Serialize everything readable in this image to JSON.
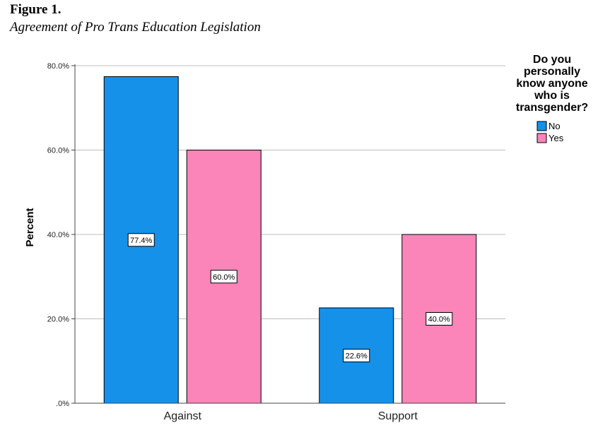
{
  "figure_label": "Figure 1.",
  "figure_title": "Agreement of Pro Trans Education Legislation",
  "chart_data": {
    "type": "bar",
    "ylabel": "Percent",
    "xlabel": "",
    "categories": [
      "Against",
      "Support"
    ],
    "series": [
      {
        "name": "No",
        "color": "#1591EA",
        "values": [
          77.4,
          22.6
        ],
        "labels": [
          "77.4%",
          "22.6%"
        ]
      },
      {
        "name": "Yes",
        "color": "#FB84B8",
        "values": [
          60.0,
          40.0
        ],
        "labels": [
          "60.0%",
          "40.0%"
        ]
      }
    ],
    "ylim": [
      0,
      80
    ],
    "yticks": [
      0,
      20,
      40,
      60,
      80
    ],
    "ytick_labels": [
      ".0%",
      "20.0%",
      "40.0%",
      "60.0%",
      "80.0%"
    ],
    "grid": true,
    "legend": {
      "title": "Do you personally know anyone who is transgender?",
      "title_lines": [
        "Do you",
        "personally",
        "know anyone",
        "who is",
        "transgender?"
      ],
      "position": "top-right"
    }
  }
}
